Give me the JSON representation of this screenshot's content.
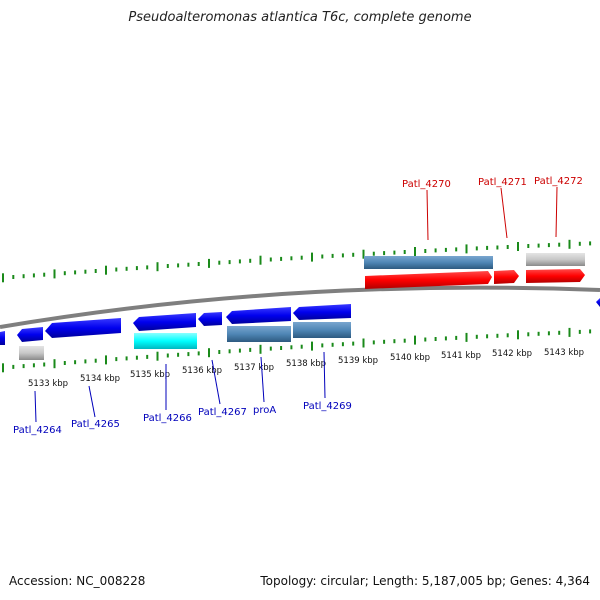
{
  "title": "Pseudoalteromonas atlantica T6c, complete genome",
  "footer": {
    "accession": "Accession: NC_008228",
    "summary": "Topology: circular; Length: 5,187,005 bp; Genes: 4,364"
  },
  "colors": {
    "forward_label": "#cc0000",
    "reverse_label": "#0000bb",
    "backbone": "#808080",
    "tick": "#1a8a1a",
    "red": "#ff0000",
    "blue": "#0000ee",
    "cyan": "#00ffff",
    "steel": "#4f86b5",
    "gray": "#c8c8c8"
  },
  "scale_labels": [
    "5133 kbp",
    "5134 kbp",
    "5135 kbp",
    "5136 kbp",
    "5137 kbp",
    "5138 kbp",
    "5139 kbp",
    "5140 kbp",
    "5141 kbp",
    "5142 kbp",
    "5143 kbp"
  ],
  "forward_genes": [
    {
      "id": "patl-4270",
      "label": "Patl_4270"
    },
    {
      "id": "patl-4271",
      "label": "Patl_4271"
    },
    {
      "id": "patl-4272",
      "label": "Patl_4272"
    }
  ],
  "reverse_genes": [
    {
      "id": "patl-4264",
      "label": "Patl_4264"
    },
    {
      "id": "patl-4265",
      "label": "Patl_4265"
    },
    {
      "id": "patl-4266",
      "label": "Patl_4266"
    },
    {
      "id": "patl-4267",
      "label": "Patl_4267"
    },
    {
      "id": "proa",
      "label": "proA"
    },
    {
      "id": "patl-4269",
      "label": "Patl_4269"
    }
  ]
}
